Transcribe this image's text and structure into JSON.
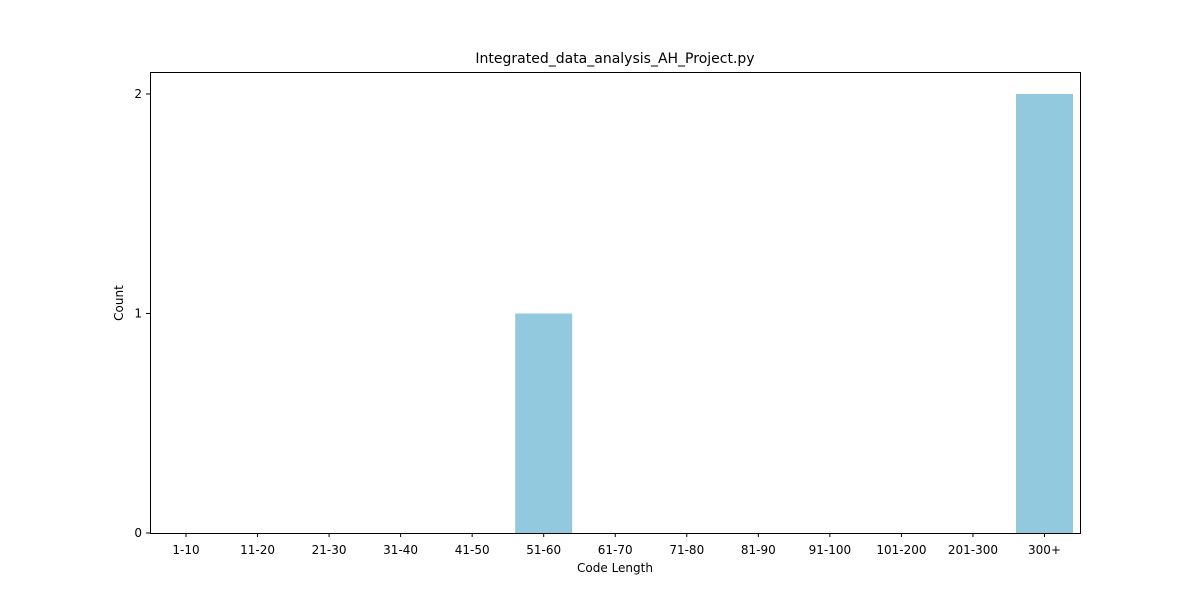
{
  "chart_data": {
    "type": "bar",
    "title": "Integrated_data_analysis_AH_Project.py",
    "xlabel": "Code Length",
    "ylabel": "Count",
    "categories": [
      "1-10",
      "11-20",
      "21-30",
      "31-40",
      "41-50",
      "51-60",
      "61-70",
      "71-80",
      "81-90",
      "91-100",
      "101-200",
      "201-300",
      "300+"
    ],
    "values": [
      0,
      0,
      0,
      0,
      0,
      1,
      0,
      0,
      0,
      0,
      0,
      0,
      2
    ],
    "yticks": [
      0,
      1,
      2
    ],
    "ylim": [
      0,
      2.1
    ],
    "grid": false,
    "bar_color": "#92c9df"
  }
}
